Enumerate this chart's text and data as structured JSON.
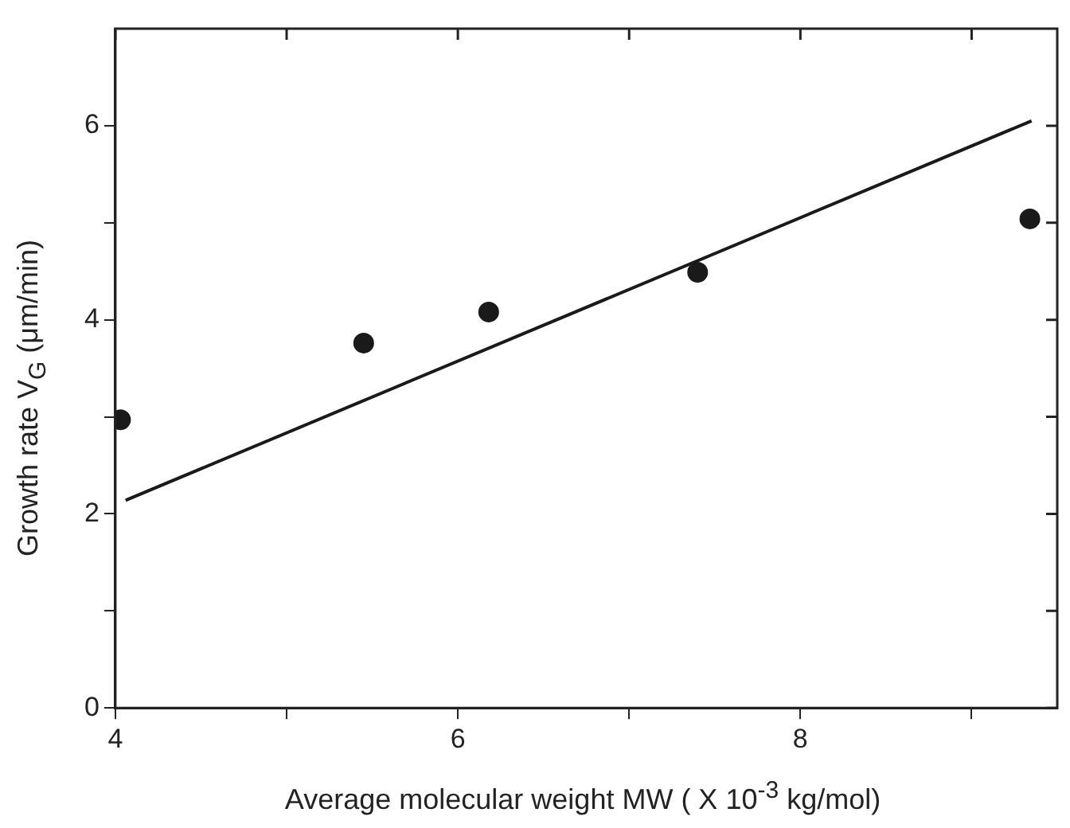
{
  "chart_data": {
    "type": "scatter",
    "xlabel": "Average molecular weight MW ( X 10$^{-3}$ kg/mol)",
    "ylabel": "Growth rate V$_{G}$ (μm/min)",
    "xlim": [
      4,
      9.5
    ],
    "xticks": [
      4,
      {
        "value": 5,
        "label": null
      },
      6,
      {
        "value": 7,
        "label": null
      },
      8,
      {
        "value": 9,
        "label": null
      }
    ],
    "ylim": [
      0,
      7
    ],
    "yticks": [
      0,
      {
        "value": 1,
        "label": null
      },
      2,
      {
        "value": 3,
        "label": null
      },
      4,
      {
        "value": 5,
        "label": null
      },
      6
    ],
    "marker": "circle",
    "legend": false,
    "grid": false,
    "series": [
      {
        "type": "scatter",
        "color": "#1a1a1a",
        "x": [
          4.03,
          5.45,
          6.18,
          7.4,
          9.34
        ],
        "values": [
          2.97,
          3.76,
          4.08,
          4.49,
          5.04
        ]
      },
      {
        "type": "line",
        "color": "#1a1a1a",
        "x": [
          4.06,
          9.35
        ],
        "values": [
          2.14,
          6.05
        ],
        "line_style": "solid",
        "marker": "none"
      }
    ]
  }
}
